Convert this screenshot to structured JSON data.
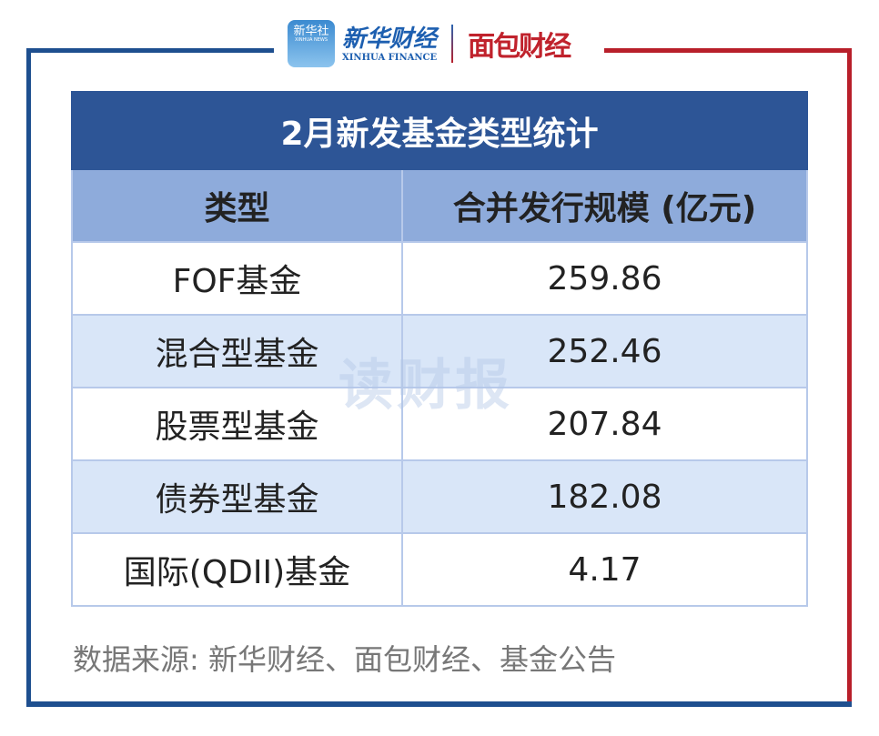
{
  "logos": {
    "xinhua_icon": "新华社",
    "xinhua_icon_sub": "XINHUA NEWS",
    "xinhua_finance_cn": "新华财经",
    "xinhua_finance_en": "XINHUA FINANCE",
    "mianbao": "面包财经"
  },
  "colors": {
    "frame_blue": "#1e4f8f",
    "frame_red": "#b81f2a",
    "title_bg": "#2d5596",
    "header_bg": "#8eabdb",
    "stripe_bg": "#d9e6f8"
  },
  "table": {
    "title": "2月新发基金类型统计",
    "headers": [
      "类型",
      "合并发行规模 (亿元)"
    ],
    "rows": [
      {
        "type": "FOF基金",
        "value": "259.86"
      },
      {
        "type": "混合型基金",
        "value": "252.46"
      },
      {
        "type": "股票型基金",
        "value": "207.84"
      },
      {
        "type": "债券型基金",
        "value": "182.08"
      },
      {
        "type": "国际(QDII)基金",
        "value": "4.17"
      }
    ]
  },
  "watermark": "读财报",
  "source": "数据来源: 新华财经、面包财经、基金公告"
}
